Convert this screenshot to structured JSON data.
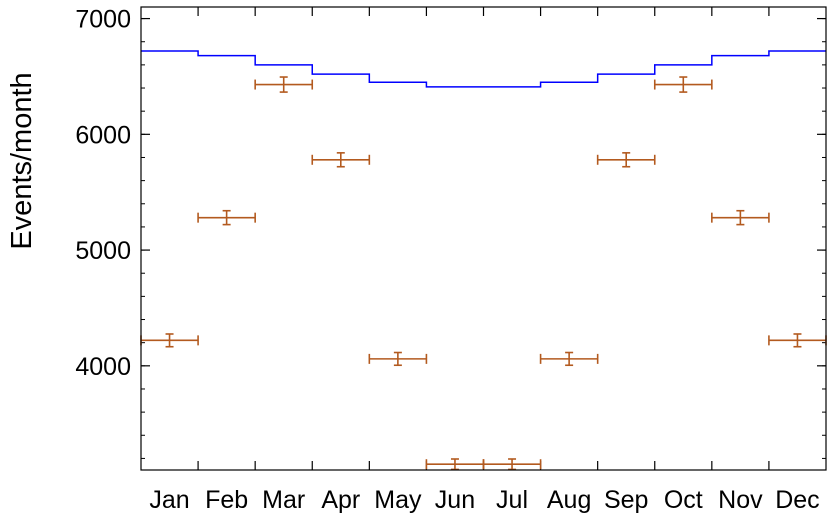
{
  "chart_data": {
    "type": "line",
    "title": "",
    "xlabel": "",
    "ylabel": "Events/month",
    "categories": [
      "Jan",
      "Feb",
      "Mar",
      "Apr",
      "May",
      "Jun",
      "Jul",
      "Aug",
      "Sep",
      "Oct",
      "Nov",
      "Dec"
    ],
    "ylim": [
      3100,
      7100
    ],
    "yticks": [
      4000,
      5000,
      6000,
      7000
    ],
    "yticks_minor_step": 200,
    "grid": false,
    "legend": "none",
    "series": [
      {
        "style": "step",
        "color": "#0000ff",
        "values": [
          6720,
          6680,
          6600,
          6520,
          6450,
          6410,
          6410,
          6450,
          6520,
          6600,
          6680,
          6720
        ]
      },
      {
        "style": "errorbar",
        "color": "#b35a1f",
        "values": [
          4220,
          5280,
          6430,
          5780,
          4060,
          3150,
          3150,
          4060,
          5780,
          6430,
          5280,
          4220
        ],
        "errors": [
          55,
          60,
          65,
          60,
          55,
          45,
          45,
          55,
          60,
          65,
          60,
          55
        ]
      }
    ]
  }
}
